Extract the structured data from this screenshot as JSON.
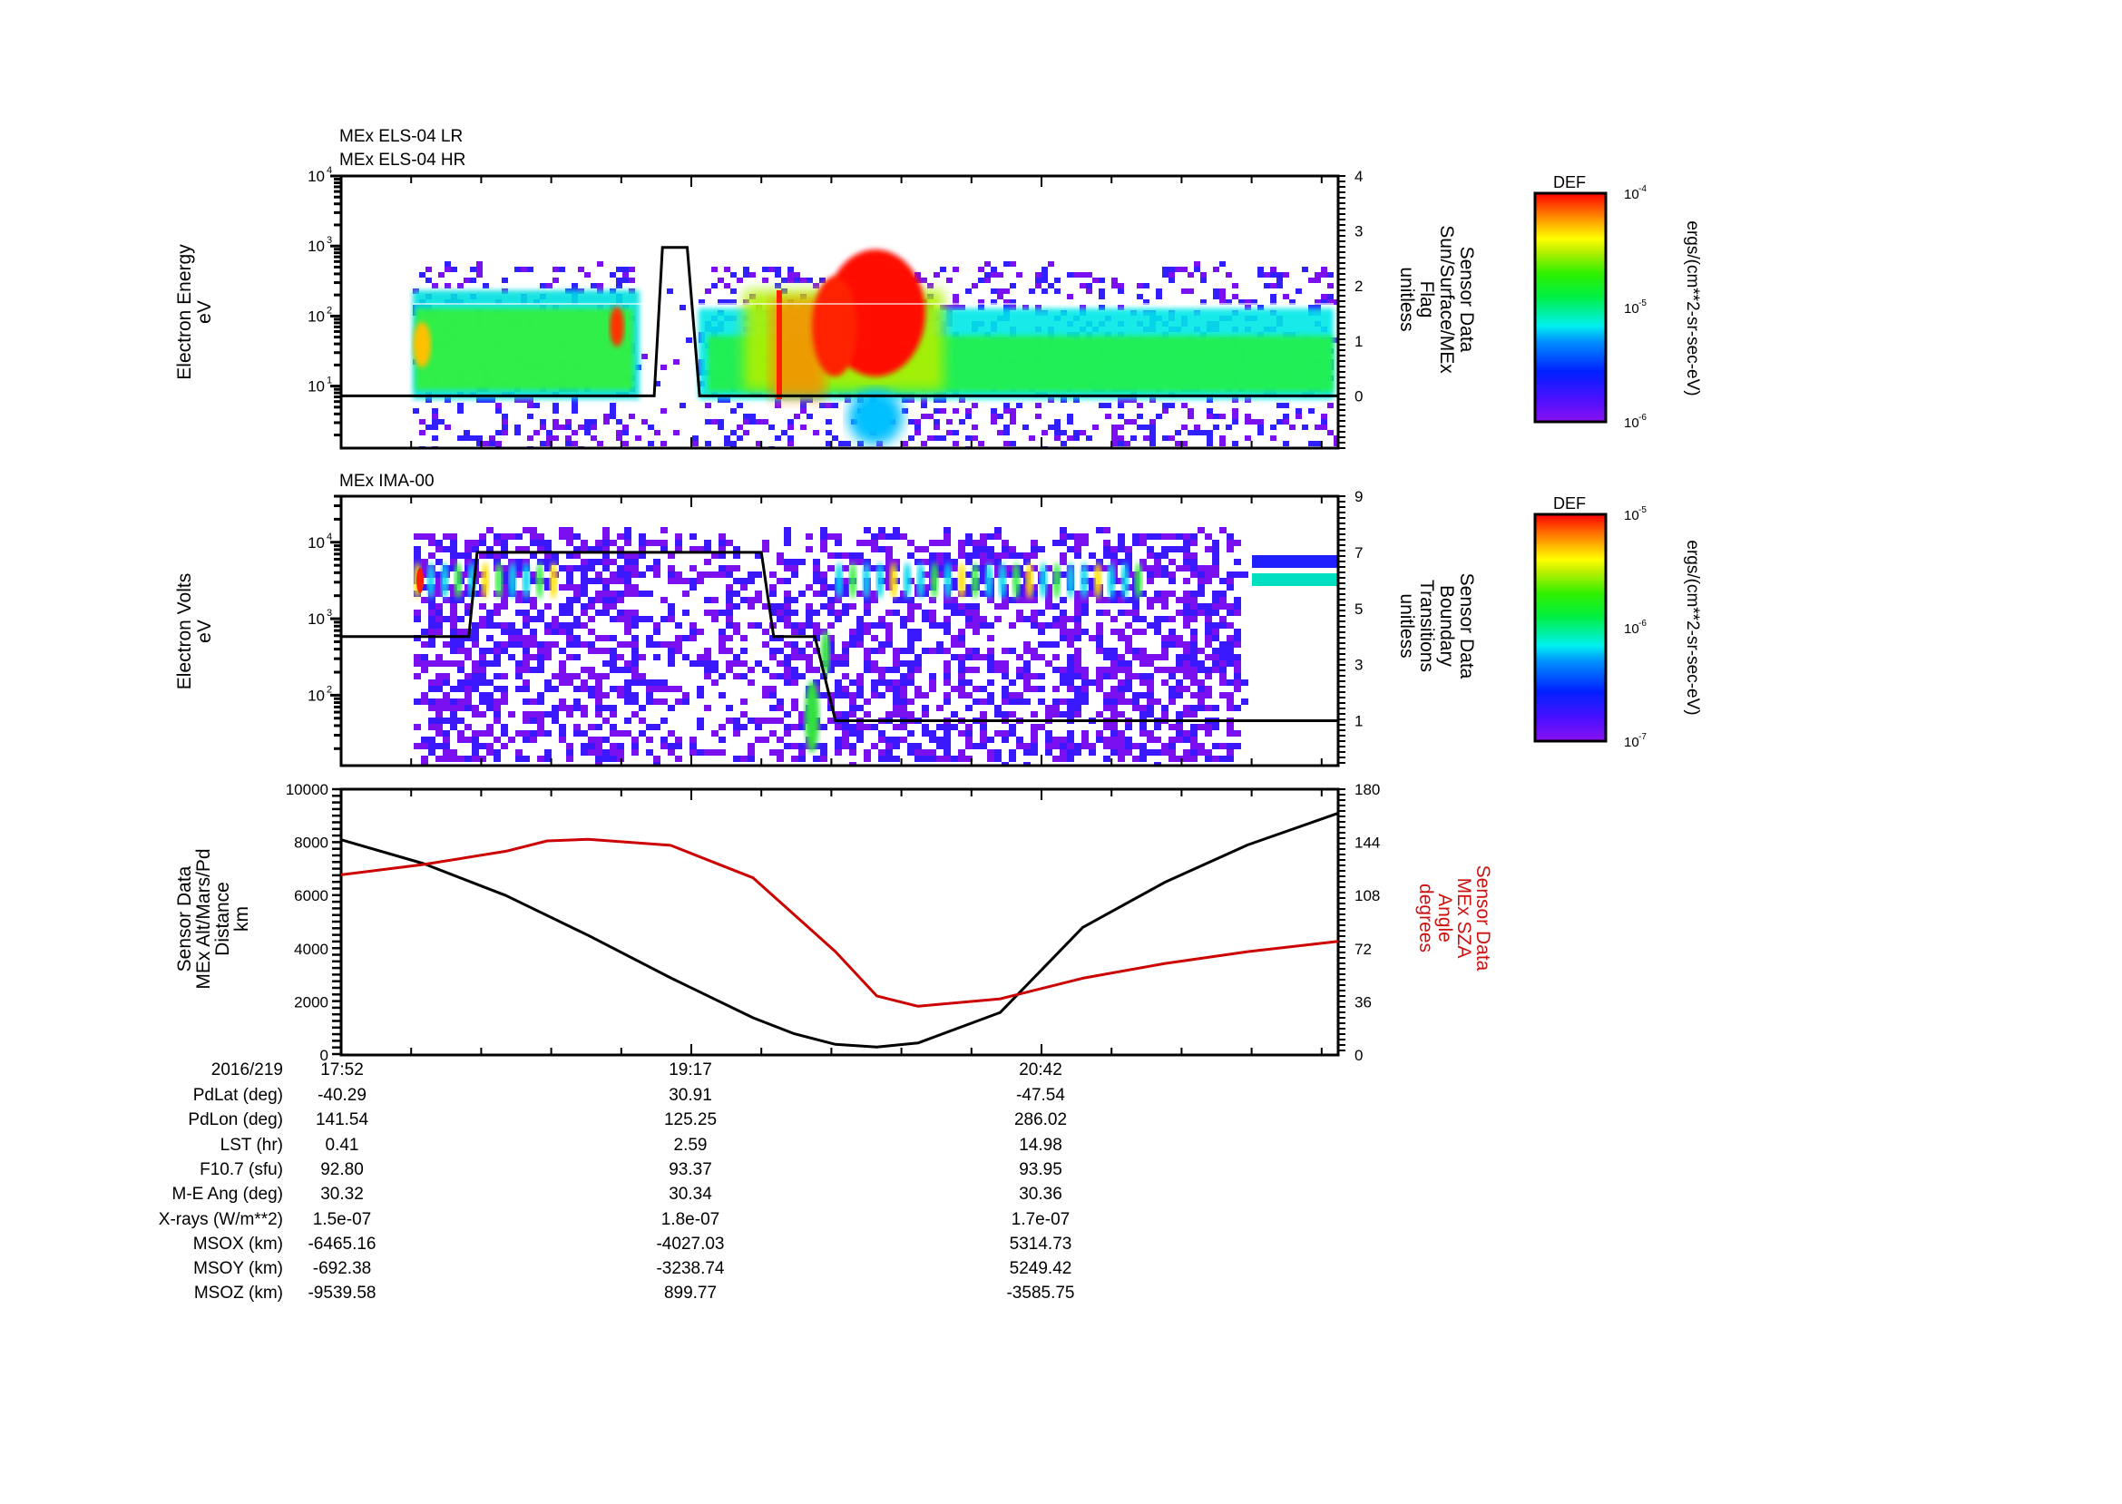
{
  "chart_data": [
    {
      "type": "heatmap",
      "panel": "top",
      "titles": [
        "MEx ELS-04 LR",
        "MEx ELS-04 HR"
      ],
      "ylabel": [
        "Electron Energy",
        "eV"
      ],
      "yscale": "log",
      "ylim": [
        1.3,
        10000
      ],
      "yticks": [
        {
          "exp": "1",
          "value": 10
        },
        {
          "exp": "2",
          "value": 100
        },
        {
          "exp": "3",
          "value": 1000
        },
        {
          "exp": "4",
          "value": 10000
        }
      ],
      "y2label": [
        "Sensor Data",
        "Sun/Surface/MEx",
        "Flag",
        "unitless"
      ],
      "y2lim": [
        -0.95,
        4
      ],
      "y2ticks": [
        "0",
        "1",
        "2",
        "3",
        "4"
      ],
      "colorbar": {
        "title": "DEF",
        "units": "ergs/(cm**2-sr-sec-eV)",
        "ticks": [
          {
            "base": "10",
            "exp": "-4"
          },
          {
            "base": "10",
            "exp": "-5"
          },
          {
            "base": "10",
            "exp": "-6"
          }
        ],
        "range": [
          1e-06,
          0.0001
        ],
        "scale": "log"
      },
      "overlay_line": {
        "name": "Sun/Surface/MEx Flag",
        "x_min": [
          0,
          76,
          78,
          84,
          87,
          242
        ],
        "y": [
          0,
          0,
          2.7,
          2.7,
          0,
          0
        ]
      }
    },
    {
      "type": "heatmap",
      "panel": "middle",
      "titles": [
        "MEx IMA-00"
      ],
      "ylabel": [
        "Electron Volts",
        "eV"
      ],
      "yscale": "log",
      "ylim": [
        12,
        40000
      ],
      "yticks": [
        {
          "exp": "2",
          "value": 100
        },
        {
          "exp": "3",
          "value": 1000
        },
        {
          "exp": "4",
          "value": 10000
        }
      ],
      "y2label": [
        "Sensor Data",
        "Boundary",
        "Transitions",
        "unitless"
      ],
      "y2lim": [
        -0.6,
        9
      ],
      "y2ticks": [
        "1",
        "3",
        "5",
        "7",
        "9"
      ],
      "colorbar": {
        "title": "DEF",
        "units": "ergs/(cm**2-sr-sec-eV)",
        "ticks": [
          {
            "base": "10",
            "exp": "-5"
          },
          {
            "base": "10",
            "exp": "-6"
          },
          {
            "base": "10",
            "exp": "-7"
          }
        ],
        "range": [
          1e-07,
          1e-05
        ],
        "scale": "log"
      },
      "overlay_line": {
        "name": "Boundary Transitions",
        "x_min": [
          0,
          31,
          33,
          102,
          105,
          115,
          120,
          242
        ],
        "y": [
          4,
          4,
          7,
          7,
          4,
          4,
          1,
          1
        ]
      }
    },
    {
      "type": "line",
      "panel": "bottom",
      "xlabel": "",
      "x_ticks": [
        "17:52",
        "19:17",
        "20:42"
      ],
      "ylabel": [
        "Sensor Data",
        "MEx Alt/Mars/Pd",
        "Distance",
        "km"
      ],
      "ylim": [
        0,
        10000
      ],
      "yticks": [
        "0",
        "2000",
        "4000",
        "6000",
        "8000",
        "10000"
      ],
      "y2label": [
        "Sensor Data",
        "MEx SZA",
        "Angle",
        "degrees"
      ],
      "y2lim": [
        0,
        180
      ],
      "y2ticks": [
        "0",
        "36",
        "72",
        "108",
        "144",
        "180"
      ],
      "series": [
        {
          "name": "MEx Alt/Mars/Pd Distance (km)",
          "color": "#000000",
          "axis": "left",
          "x_min": [
            0,
            20,
            40,
            60,
            80,
            100,
            110,
            120,
            130,
            140,
            160,
            180,
            200,
            220,
            242
          ],
          "values": [
            8100,
            7200,
            6000,
            4500,
            2900,
            1400,
            800,
            400,
            300,
            450,
            1600,
            4800,
            6500,
            7900,
            9100
          ]
        },
        {
          "name": "MEx SZA Angle (degrees)",
          "color": "#cc0000",
          "axis": "right",
          "x_min": [
            0,
            20,
            40,
            50,
            60,
            80,
            100,
            120,
            130,
            140,
            160,
            180,
            200,
            220,
            242
          ],
          "values": [
            122,
            129,
            138,
            145,
            146,
            142,
            120,
            70,
            40,
            33,
            38,
            52,
            62,
            70,
            77
          ]
        }
      ]
    }
  ],
  "time_axis": {
    "date_label": "2016/219",
    "major_ticks": [
      "17:52",
      "19:17",
      "20:42"
    ],
    "minutes_per_major": 85
  },
  "ephemeris": {
    "rows": [
      {
        "label": "PdLat (deg)",
        "values": [
          "-40.29",
          "30.91",
          "-47.54"
        ]
      },
      {
        "label": "PdLon (deg)",
        "values": [
          "141.54",
          "125.25",
          "286.02"
        ]
      },
      {
        "label": "LST (hr)",
        "values": [
          "0.41",
          "2.59",
          "14.98"
        ]
      },
      {
        "label": "F10.7 (sfu)",
        "values": [
          "92.80",
          "93.37",
          "93.95"
        ]
      },
      {
        "label": "M-E Ang (deg)",
        "values": [
          "30.32",
          "30.34",
          "30.36"
        ]
      },
      {
        "label": "X-rays (W/m**2)",
        "values": [
          "1.5e-07",
          "1.8e-07",
          "1.7e-07"
        ]
      },
      {
        "label": "MSOX (km)",
        "values": [
          "-6465.16",
          "-4027.03",
          "5314.73"
        ]
      },
      {
        "label": "MSOY (km)",
        "values": [
          "-692.38",
          "-3238.74",
          "5249.42"
        ]
      },
      {
        "label": "MSOZ (km)",
        "values": [
          "-9539.58",
          "899.77",
          "-3585.75"
        ]
      }
    ]
  },
  "colors": {
    "axis": "#000000",
    "sza_line": "#cc0000",
    "colormap": [
      "#8000ff",
      "#3010ff",
      "#0030ff",
      "#00a0ff",
      "#00ffff",
      "#00ff60",
      "#20ff00",
      "#a0ff00",
      "#ffff00",
      "#ffa000",
      "#ff4000",
      "#ff0000"
    ]
  }
}
